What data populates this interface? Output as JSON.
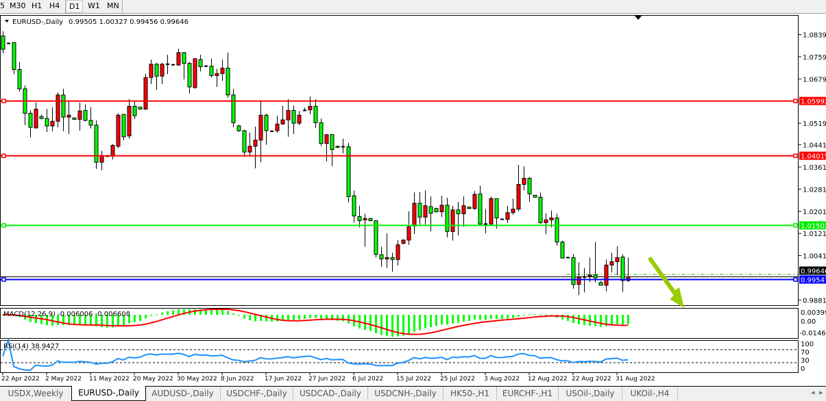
{
  "toolbar": {
    "timeframes": [
      {
        "label": "5"
      },
      {
        "label": "M30"
      },
      {
        "label": "H1"
      },
      {
        "label": "H4"
      },
      {
        "label": "D1",
        "active": true
      },
      {
        "label": "W1"
      },
      {
        "label": "MN"
      }
    ]
  },
  "chart": {
    "symbol_label": "EURUSD-,Daily",
    "ohlc_label": "0.99505 1.00327 0.99456 0.99646",
    "bull_color": "#ff0000",
    "bear_color": "#00ff00",
    "price_axis_labels": [
      "1.08390",
      "1.07590",
      "1.06790",
      "1.05190",
      "1.04410",
      "1.03610",
      "1.02810",
      "1.02010",
      "1.01210",
      "1.00410",
      "0.98810"
    ],
    "current_price": {
      "value": 0.99646,
      "label": "0.99646"
    },
    "ask_line_price": 0.9973,
    "horizontal_lines": [
      {
        "price": 1.05992,
        "label": "1.05992",
        "color": "#ff0000"
      },
      {
        "price": 1.04015,
        "label": "1.04015",
        "color": "#ff0000"
      },
      {
        "price": 1.01502,
        "label": "1.01502",
        "color": "#00ee00"
      },
      {
        "price": 0.99547,
        "label": "0.99547",
        "color": "#0000ff"
      }
    ],
    "arrow_color": "#99cc00",
    "time_labels": [
      "22 Apr 2022",
      "2 May 2022",
      "11 May 2022",
      "20 May 2022",
      "30 May 2022",
      "8 Jun 2022",
      "17 Jun 2022",
      "27 Jun 2022",
      "6 Jul 2022",
      "15 Jul 2022",
      "25 Jul 2022",
      "3 Aug 2022",
      "12 Aug 2022",
      "22 Aug 2022",
      "31 Aug 2022"
    ]
  },
  "chart_data": {
    "type": "candlestick",
    "candles_ohlc": [
      [
        1.0834,
        1.0851,
        1.0771,
        1.0786
      ],
      [
        1.0807,
        1.081,
        1.0805,
        1.0807
      ],
      [
        1.081,
        1.0812,
        1.0696,
        1.0713
      ],
      [
        1.0713,
        1.074,
        1.0633,
        1.0643
      ],
      [
        1.0643,
        1.0655,
        1.0512,
        1.0555
      ],
      [
        1.0555,
        1.0565,
        1.0468,
        1.0504
      ],
      [
        1.0502,
        1.0594,
        1.05,
        1.057
      ],
      [
        1.0543,
        1.055,
        1.0533,
        1.0536
      ],
      [
        1.0536,
        1.057,
        1.0487,
        1.0509
      ],
      [
        1.0509,
        1.0577,
        1.049,
        1.0526
      ],
      [
        1.0526,
        1.063,
        1.0504,
        1.0621
      ],
      [
        1.0621,
        1.0643,
        1.049,
        1.0541
      ],
      [
        1.0541,
        1.0599,
        1.048,
        1.0548
      ],
      [
        1.0538,
        1.054,
        1.0531,
        1.0533
      ],
      [
        1.0533,
        1.0594,
        1.0492,
        1.0563
      ],
      [
        1.0565,
        1.0587,
        1.0526,
        1.0529
      ],
      [
        1.0529,
        1.0577,
        1.05,
        1.0512
      ],
      [
        1.0512,
        1.0529,
        1.0354,
        1.0378
      ],
      [
        1.0378,
        1.0419,
        1.0349,
        1.0403
      ],
      [
        1.04,
        1.0401,
        1.0397,
        1.0398
      ],
      [
        1.04,
        1.0444,
        1.0388,
        1.0439
      ],
      [
        1.0436,
        1.0555,
        1.0429,
        1.0548
      ],
      [
        1.0551,
        1.0551,
        1.0458,
        1.047
      ],
      [
        1.0473,
        1.0606,
        1.0463,
        1.058
      ],
      [
        1.058,
        1.0599,
        1.0534,
        1.0546
      ],
      [
        1.0577,
        1.0579,
        1.0568,
        1.057
      ],
      [
        1.057,
        1.0698,
        1.0567,
        1.0684
      ],
      [
        1.0684,
        1.0749,
        1.066,
        1.0732
      ],
      [
        1.0732,
        1.0737,
        1.064,
        1.0689
      ],
      [
        1.0689,
        1.0737,
        1.066,
        1.0732
      ],
      [
        1.0732,
        1.0766,
        1.0696,
        1.0731
      ],
      [
        1.073,
        1.0732,
        1.0727,
        1.0729
      ],
      [
        1.0729,
        1.0788,
        1.0727,
        1.0774
      ],
      [
        1.0774,
        1.0776,
        1.0677,
        1.0735
      ],
      [
        1.0735,
        1.074,
        1.0626,
        1.065
      ],
      [
        1.0648,
        1.0752,
        1.0643,
        1.0752
      ],
      [
        1.0749,
        1.0766,
        1.0706,
        1.0723
      ],
      [
        1.0725,
        1.0727,
        1.0722,
        1.0724
      ],
      [
        1.0725,
        1.0752,
        1.0684,
        1.0691
      ],
      [
        1.0691,
        1.0715,
        1.065,
        1.0698
      ],
      [
        1.0698,
        1.0749,
        1.0672,
        1.0718
      ],
      [
        1.0718,
        1.0774,
        1.0611,
        1.0621
      ],
      [
        1.0621,
        1.0643,
        1.0504,
        1.0521
      ],
      [
        1.0509,
        1.0514,
        1.0487,
        1.0492
      ],
      [
        1.0492,
        1.0495,
        1.0398,
        1.0415
      ],
      [
        1.0415,
        1.0485,
        1.0398,
        1.0436
      ],
      [
        1.0436,
        1.0507,
        1.0356,
        1.0458
      ],
      [
        1.0458,
        1.0599,
        1.0378,
        1.0548
      ],
      [
        1.0548,
        1.0553,
        1.0441,
        1.0492
      ],
      [
        1.049,
        1.0492,
        1.0487,
        1.0489
      ],
      [
        1.0492,
        1.0546,
        1.0485,
        1.0516
      ],
      [
        1.0516,
        1.0582,
        1.0514,
        1.0531
      ],
      [
        1.0531,
        1.0606,
        1.047,
        1.0565
      ],
      [
        1.0565,
        1.0582,
        1.048,
        1.0519
      ],
      [
        1.0519,
        1.0563,
        1.0512,
        1.0548
      ],
      [
        1.0565,
        1.0575,
        1.0563,
        1.0564
      ],
      [
        1.0567,
        1.0616,
        1.0551,
        1.058
      ],
      [
        1.058,
        1.0606,
        1.0502,
        1.0521
      ],
      [
        1.0521,
        1.0536,
        1.0436,
        1.0446
      ],
      [
        1.0446,
        1.0478,
        1.0381,
        1.0478
      ],
      [
        1.0478,
        1.0478,
        1.0364,
        1.0424
      ],
      [
        1.0436,
        1.0437,
        1.0429,
        1.0432
      ],
      [
        1.0434,
        1.0463,
        1.041,
        1.0434
      ],
      [
        1.0434,
        1.0448,
        1.0233,
        1.0254
      ],
      [
        1.0257,
        1.0276,
        1.016,
        1.0184
      ],
      [
        1.0182,
        1.0221,
        1.0143,
        1.0167
      ],
      [
        1.017,
        1.0192,
        1.0073,
        1.0175
      ],
      [
        1.0175,
        1.0177,
        1.0165,
        1.0167
      ],
      [
        1.0167,
        1.0167,
        1.0034,
        1.0046
      ],
      [
        1.0044,
        1.0073,
        1.0,
        1.0029
      ],
      [
        1.0029,
        1.0121,
        0.9997,
        1.0034
      ],
      [
        1.0034,
        1.0051,
        0.9983,
        1.0027
      ],
      [
        1.0027,
        1.0097,
        1.0005,
        1.008
      ],
      [
        1.0085,
        1.01,
        1.0082,
        1.0097
      ],
      [
        1.0097,
        1.0201,
        1.008,
        1.0145
      ],
      [
        1.0148,
        1.0269,
        1.0119,
        1.023
      ],
      [
        1.023,
        1.0271,
        1.0153,
        1.018
      ],
      [
        1.018,
        1.0276,
        1.0153,
        1.0221
      ],
      [
        1.0218,
        1.0255,
        1.0128,
        1.0194
      ],
      [
        1.0211,
        1.0214,
        1.0197,
        1.0199
      ],
      [
        1.0199,
        1.0257,
        1.018,
        1.0223
      ],
      [
        1.0223,
        1.025,
        1.0107,
        1.0128
      ],
      [
        1.0128,
        1.0221,
        1.0095,
        1.0206
      ],
      [
        1.0206,
        1.0235,
        1.0114,
        1.0192
      ],
      [
        1.0192,
        1.0255,
        1.0145,
        1.0221
      ],
      [
        1.0216,
        1.0218,
        1.0209,
        1.0211
      ],
      [
        1.0211,
        1.0274,
        1.0206,
        1.0262
      ],
      [
        1.0264,
        1.0293,
        1.0155,
        1.0155
      ],
      [
        1.0155,
        1.0209,
        1.0121,
        1.0155
      ],
      [
        1.0155,
        1.0254,
        1.0155,
        1.0247
      ],
      [
        1.0247,
        1.0247,
        1.0138,
        1.0177
      ],
      [
        1.0172,
        1.0175,
        1.017,
        1.0171
      ],
      [
        1.0172,
        1.0221,
        1.0158,
        1.0196
      ],
      [
        1.0196,
        1.0247,
        1.0189,
        1.0209
      ],
      [
        1.0209,
        1.0368,
        1.0201,
        1.0298
      ],
      [
        1.0298,
        1.0363,
        1.0276,
        1.032
      ],
      [
        1.032,
        1.0325,
        1.0235,
        1.0264
      ],
      [
        1.0259,
        1.026,
        1.025,
        1.0252
      ],
      [
        1.0252,
        1.0269,
        1.0155,
        1.016
      ],
      [
        1.016,
        1.0194,
        1.0119,
        1.017
      ],
      [
        1.017,
        1.0204,
        1.0143,
        1.0177
      ],
      [
        1.0177,
        1.0192,
        1.0078,
        1.009
      ],
      [
        1.009,
        1.0095,
        1.0032,
        1.0032
      ],
      [
        1.0034,
        1.0036,
        1.0032,
        1.0034
      ],
      [
        1.0034,
        1.0046,
        0.9922,
        0.9937
      ],
      [
        0.9937,
        1.0017,
        0.9898,
        0.9964
      ],
      [
        0.9964,
        0.9997,
        0.9908,
        0.9963
      ],
      [
        0.9966,
        1.0034,
        0.9946,
        0.9971
      ],
      [
        0.9971,
        1.009,
        0.9944,
        0.9961
      ],
      [
        0.9944,
        0.9949,
        0.9934,
        0.9934
      ],
      [
        0.9934,
        1.0027,
        0.9912,
        1.0007
      ],
      [
        1.0007,
        1.0051,
        0.998,
        1.0019
      ],
      [
        1.0019,
        1.0075,
        0.9971,
        1.0034
      ],
      [
        1.0036,
        1.0046,
        0.991,
        0.9951
      ],
      [
        0.9951,
        1.0034,
        0.9946,
        0.99646
      ]
    ],
    "price_range": [
      0.9862,
      1.0907
    ]
  },
  "macd": {
    "label": "MACD(12,26,9) -0.006006 -0.006608",
    "axis_labels": [
      "0.00399",
      "0.00",
      "-0.01469"
    ],
    "histogram_color": "#00ff00",
    "signal_color": "#ff0000"
  },
  "rsi": {
    "label": "RSI(14) 38.9427",
    "axis_labels": [
      "100",
      "70",
      "30",
      "0"
    ],
    "levels": [
      70,
      30
    ],
    "line_color": "#1e90ff"
  },
  "tabs": [
    {
      "label": "USDX,Weekly"
    },
    {
      "label": "EURUSD-,Daily",
      "active": true
    },
    {
      "label": "AUDUSD-,Daily"
    },
    {
      "label": "USDCHF-,Daily"
    },
    {
      "label": "USDCAD-,Daily"
    },
    {
      "label": "USDCNH-,Daily"
    },
    {
      "label": "HK50-,H1"
    },
    {
      "label": "EURCHF-,H1"
    },
    {
      "label": "USOil-,Daily"
    },
    {
      "label": "UKOil-,H4"
    }
  ],
  "tab_nav": {
    "prev": "◂",
    "next": "▸"
  }
}
